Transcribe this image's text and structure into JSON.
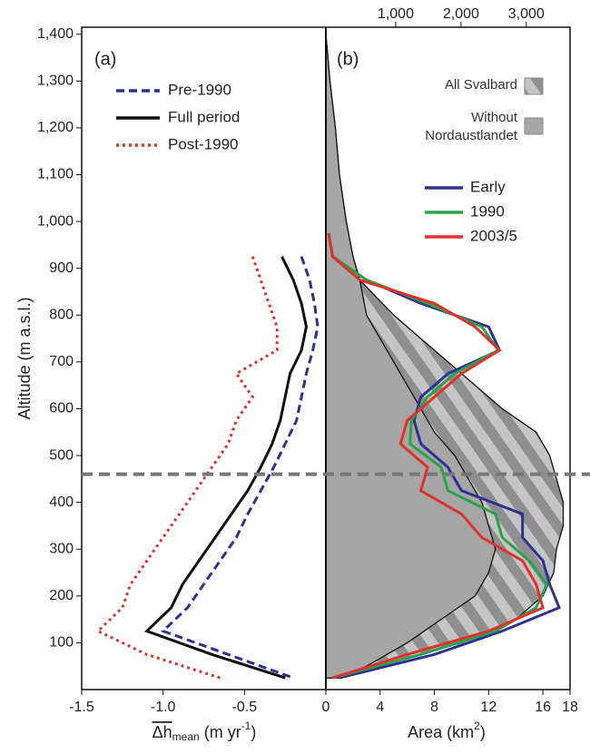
{
  "chart_data": [
    {
      "type": "line",
      "label": "(a)",
      "xlim": [
        -1.5,
        0
      ],
      "xticks": [
        -1.5,
        {
          "value": -1.0,
          "label": "-1.0"
        },
        -0.5
      ],
      "xlabel": [
        "Δh",
        "mean",
        " (m yr",
        "-1",
        ")"
      ],
      "ylabel": "Altitude (m a.s.l.)",
      "ylim": [
        0,
        1415
      ],
      "yticks": [
        100,
        200,
        300,
        400,
        500,
        600,
        700,
        800,
        900,
        {
          "value": 1000,
          "label": "1,000"
        },
        {
          "value": 1100,
          "label": "1,100"
        },
        {
          "value": 1200,
          "label": "1,200"
        },
        {
          "value": 1300,
          "label": "1,300"
        },
        {
          "value": 1400,
          "label": "1,400"
        }
      ],
      "hline": 460,
      "altitudes": [
        925,
        875,
        825,
        775,
        725,
        675,
        625,
        575,
        525,
        475,
        425,
        375,
        325,
        275,
        225,
        175,
        125,
        75,
        25
      ],
      "series": [
        {
          "name": "Pre-1990",
          "color": "#2e3192",
          "dash": "dashed",
          "values": [
            -0.15,
            -0.1,
            -0.07,
            -0.05,
            -0.08,
            -0.12,
            -0.15,
            -0.18,
            -0.25,
            -0.32,
            -0.4,
            -0.48,
            -0.55,
            -0.65,
            -0.75,
            -0.85,
            -1.0,
            -0.6,
            -0.2
          ]
        },
        {
          "name": "Full period",
          "color": "#111111",
          "dash": "solid",
          "values": [
            -0.27,
            -0.2,
            -0.15,
            -0.12,
            -0.15,
            -0.22,
            -0.25,
            -0.28,
            -0.33,
            -0.4,
            -0.48,
            -0.58,
            -0.68,
            -0.78,
            -0.88,
            -0.95,
            -1.1,
            -0.7,
            -0.25
          ]
        },
        {
          "name": "Post-1990",
          "color": "#d9362b",
          "dash": "dotted",
          "values": [
            -0.45,
            -0.4,
            -0.35,
            -0.3,
            -0.3,
            -0.55,
            -0.45,
            -0.55,
            -0.6,
            -0.7,
            -0.8,
            -0.9,
            -1.0,
            -1.1,
            -1.2,
            -1.25,
            -1.4,
            -1.1,
            -0.65
          ]
        }
      ]
    },
    {
      "type": "area",
      "label": "(b)",
      "xlim": [
        0,
        18
      ],
      "xticks": [
        0,
        4,
        8,
        12,
        16,
        18
      ],
      "x2lim": [
        -70,
        3670
      ],
      "x2ticks": [
        {
          "value": 1000,
          "label": "1,000"
        },
        {
          "value": 2000,
          "label": "2,000"
        },
        {
          "value": 3000,
          "label": "3,000"
        }
      ],
      "xlabel": [
        "Area (km",
        "2",
        ")"
      ],
      "area_altitudes": [
        1400,
        1300,
        1200,
        1100,
        1000,
        925,
        875,
        800,
        750,
        700,
        650,
        600,
        550,
        500,
        450,
        400,
        350,
        300,
        250,
        200,
        150,
        100,
        50,
        25
      ],
      "areas": [
        {
          "name": "All Svalbard",
          "fill": "hatch",
          "values": [
            0,
            0.3,
            0.7,
            1,
            1.5,
            2,
            2.5,
            5,
            7,
            9,
            11,
            13,
            15.5,
            16.5,
            17,
            17.5,
            17.5,
            17,
            16.8,
            16,
            14,
            10,
            4,
            1
          ]
        },
        {
          "name": "Without Nordaustlandet",
          "fill": "#a6a6a6",
          "values": [
            0,
            0.3,
            0.7,
            1,
            1.5,
            2,
            2.5,
            3,
            4,
            5,
            6,
            7,
            8,
            9.5,
            10.5,
            11.5,
            12,
            12.5,
            12,
            11,
            8.5,
            6,
            3,
            1
          ]
        }
      ],
      "altitudes": [
        975,
        925,
        875,
        825,
        775,
        725,
        675,
        625,
        575,
        525,
        475,
        425,
        375,
        325,
        275,
        225,
        175,
        125,
        75,
        25
      ],
      "series": [
        {
          "name": "Early",
          "color": "#2e3192",
          "values": [
            0.2,
            0.5,
            3,
            7,
            12,
            12.8,
            9,
            7,
            6.5,
            7,
            9,
            10,
            14.5,
            14.5,
            16,
            16.5,
            17.2,
            13,
            8,
            1
          ]
        },
        {
          "name": "1990",
          "color": "#2aa24a",
          "values": [
            0.2,
            0.5,
            3,
            7.5,
            11.5,
            12.7,
            9.5,
            7.5,
            6.3,
            6.2,
            8.5,
            9,
            12.5,
            13,
            15,
            16.3,
            15.5,
            12.5,
            7,
            0.5
          ]
        },
        {
          "name": "2003/5",
          "color": "#e0312b",
          "values": [
            0.2,
            0.5,
            2.5,
            8,
            11,
            12.8,
            10,
            8,
            6,
            5.5,
            7.5,
            7,
            10,
            11.5,
            14.5,
            15.5,
            16,
            12,
            6,
            0.5
          ]
        }
      ]
    }
  ]
}
